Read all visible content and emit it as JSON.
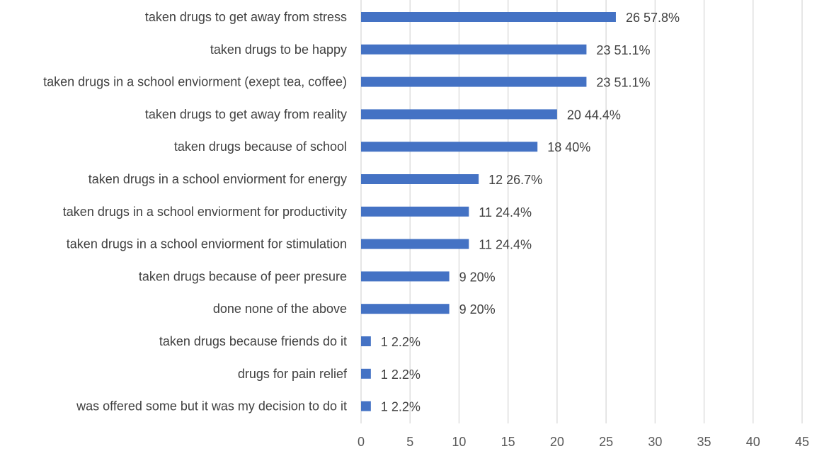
{
  "chart_data": {
    "type": "bar",
    "orientation": "horizontal",
    "categories": [
      "taken drugs to get away from stress",
      "taken drugs to be happy",
      "taken drugs in a school enviorment (exept tea, coffee)",
      "taken drugs to get away from reality",
      "taken drugs because of school",
      "taken drugs in a school enviorment for energy",
      "taken drugs in a school enviorment for productivity",
      "taken drugs in a school enviorment for stimulation",
      "taken drugs because of peer presure",
      "done none of the above",
      "taken drugs because friends do it",
      "drugs for pain relief",
      "was offered some but it was my decision to do it"
    ],
    "values": [
      26,
      23,
      23,
      20,
      18,
      12,
      11,
      11,
      9,
      9,
      1,
      1,
      1
    ],
    "data_labels": [
      "26 57.8%",
      "23 51.1%",
      "23 51.1%",
      "20 44.4%",
      "18 40%",
      "12 26.7%",
      "11 24.4%",
      "11 24.4%",
      "9 20%",
      "9 20%",
      "1 2.2%",
      "1 2.2%",
      "1 2.2%"
    ],
    "x_ticks": [
      0,
      5,
      10,
      15,
      20,
      25,
      30,
      35,
      40,
      45
    ],
    "xlim": [
      0,
      45
    ],
    "grid": "vertical",
    "legend": "none",
    "bar_color": "#4472c4",
    "title": "",
    "xlabel": "",
    "ylabel": ""
  }
}
